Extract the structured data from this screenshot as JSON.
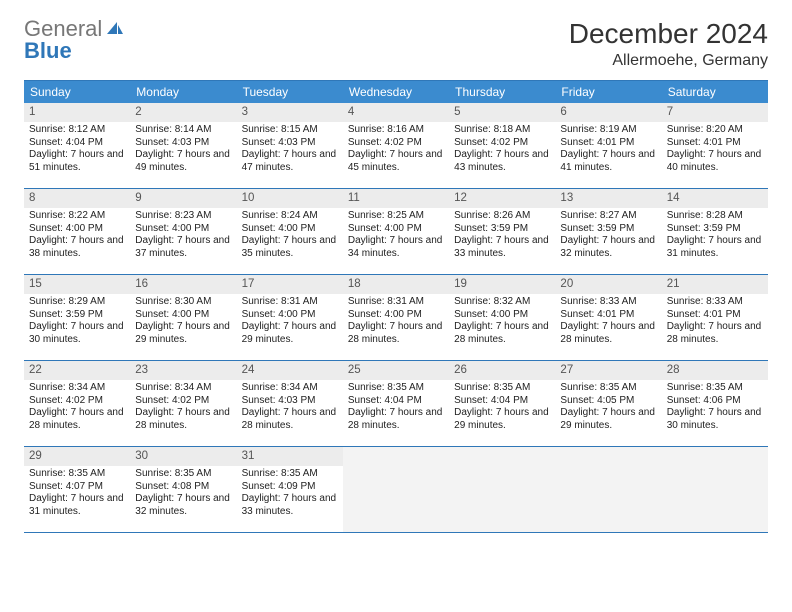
{
  "logo": {
    "text1": "General",
    "text2": "Blue"
  },
  "title": "December 2024",
  "location": "Allermoehe, Germany",
  "colors": {
    "header_bg": "#3b8bcf",
    "header_text": "#ffffff",
    "rule": "#2f77b8",
    "daynum_bg": "#ececec",
    "empty_bg": "#f3f3f3",
    "text": "#222222",
    "title_text": "#333333",
    "logo_gray": "#777777",
    "logo_blue": "#2f77b8"
  },
  "dow": [
    "Sunday",
    "Monday",
    "Tuesday",
    "Wednesday",
    "Thursday",
    "Friday",
    "Saturday"
  ],
  "days": [
    {
      "n": "1",
      "sr": "8:12 AM",
      "ss": "4:04 PM",
      "dl": "7 hours and 51 minutes."
    },
    {
      "n": "2",
      "sr": "8:14 AM",
      "ss": "4:03 PM",
      "dl": "7 hours and 49 minutes."
    },
    {
      "n": "3",
      "sr": "8:15 AM",
      "ss": "4:03 PM",
      "dl": "7 hours and 47 minutes."
    },
    {
      "n": "4",
      "sr": "8:16 AM",
      "ss": "4:02 PM",
      "dl": "7 hours and 45 minutes."
    },
    {
      "n": "5",
      "sr": "8:18 AM",
      "ss": "4:02 PM",
      "dl": "7 hours and 43 minutes."
    },
    {
      "n": "6",
      "sr": "8:19 AM",
      "ss": "4:01 PM",
      "dl": "7 hours and 41 minutes."
    },
    {
      "n": "7",
      "sr": "8:20 AM",
      "ss": "4:01 PM",
      "dl": "7 hours and 40 minutes."
    },
    {
      "n": "8",
      "sr": "8:22 AM",
      "ss": "4:00 PM",
      "dl": "7 hours and 38 minutes."
    },
    {
      "n": "9",
      "sr": "8:23 AM",
      "ss": "4:00 PM",
      "dl": "7 hours and 37 minutes."
    },
    {
      "n": "10",
      "sr": "8:24 AM",
      "ss": "4:00 PM",
      "dl": "7 hours and 35 minutes."
    },
    {
      "n": "11",
      "sr": "8:25 AM",
      "ss": "4:00 PM",
      "dl": "7 hours and 34 minutes."
    },
    {
      "n": "12",
      "sr": "8:26 AM",
      "ss": "3:59 PM",
      "dl": "7 hours and 33 minutes."
    },
    {
      "n": "13",
      "sr": "8:27 AM",
      "ss": "3:59 PM",
      "dl": "7 hours and 32 minutes."
    },
    {
      "n": "14",
      "sr": "8:28 AM",
      "ss": "3:59 PM",
      "dl": "7 hours and 31 minutes."
    },
    {
      "n": "15",
      "sr": "8:29 AM",
      "ss": "3:59 PM",
      "dl": "7 hours and 30 minutes."
    },
    {
      "n": "16",
      "sr": "8:30 AM",
      "ss": "4:00 PM",
      "dl": "7 hours and 29 minutes."
    },
    {
      "n": "17",
      "sr": "8:31 AM",
      "ss": "4:00 PM",
      "dl": "7 hours and 29 minutes."
    },
    {
      "n": "18",
      "sr": "8:31 AM",
      "ss": "4:00 PM",
      "dl": "7 hours and 28 minutes."
    },
    {
      "n": "19",
      "sr": "8:32 AM",
      "ss": "4:00 PM",
      "dl": "7 hours and 28 minutes."
    },
    {
      "n": "20",
      "sr": "8:33 AM",
      "ss": "4:01 PM",
      "dl": "7 hours and 28 minutes."
    },
    {
      "n": "21",
      "sr": "8:33 AM",
      "ss": "4:01 PM",
      "dl": "7 hours and 28 minutes."
    },
    {
      "n": "22",
      "sr": "8:34 AM",
      "ss": "4:02 PM",
      "dl": "7 hours and 28 minutes."
    },
    {
      "n": "23",
      "sr": "8:34 AM",
      "ss": "4:02 PM",
      "dl": "7 hours and 28 minutes."
    },
    {
      "n": "24",
      "sr": "8:34 AM",
      "ss": "4:03 PM",
      "dl": "7 hours and 28 minutes."
    },
    {
      "n": "25",
      "sr": "8:35 AM",
      "ss": "4:04 PM",
      "dl": "7 hours and 28 minutes."
    },
    {
      "n": "26",
      "sr": "8:35 AM",
      "ss": "4:04 PM",
      "dl": "7 hours and 29 minutes."
    },
    {
      "n": "27",
      "sr": "8:35 AM",
      "ss": "4:05 PM",
      "dl": "7 hours and 29 minutes."
    },
    {
      "n": "28",
      "sr": "8:35 AM",
      "ss": "4:06 PM",
      "dl": "7 hours and 30 minutes."
    },
    {
      "n": "29",
      "sr": "8:35 AM",
      "ss": "4:07 PM",
      "dl": "7 hours and 31 minutes."
    },
    {
      "n": "30",
      "sr": "8:35 AM",
      "ss": "4:08 PM",
      "dl": "7 hours and 32 minutes."
    },
    {
      "n": "31",
      "sr": "8:35 AM",
      "ss": "4:09 PM",
      "dl": "7 hours and 33 minutes."
    }
  ],
  "labels": {
    "sunrise": "Sunrise: ",
    "sunset": "Sunset: ",
    "daylight": "Daylight: "
  }
}
